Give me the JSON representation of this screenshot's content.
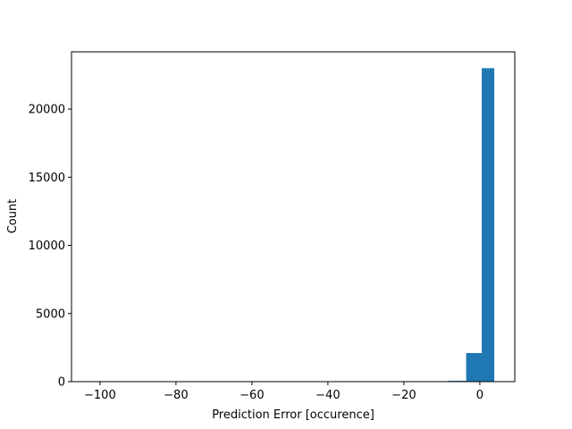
{
  "chart_data": {
    "type": "bar",
    "title": "",
    "xlabel": "Prediction Error [occurence]",
    "ylabel": "Count",
    "xlim": [
      -107.5,
      9.2
    ],
    "ylim": [
      0,
      24200
    ],
    "grid": false,
    "legend": "none",
    "bar_color": "#1f77b4",
    "xticks": [
      -100,
      -80,
      -60,
      -40,
      -20,
      0
    ],
    "xtick_labels": [
      "−100",
      "−80",
      "−60",
      "−40",
      "−20",
      "0"
    ],
    "yticks": [
      0,
      5000,
      10000,
      15000,
      20000
    ],
    "ytick_labels": [
      "0",
      "5000",
      "10000",
      "15000",
      "20000"
    ],
    "bins": [
      {
        "x0": -102.3,
        "x1": -97.6,
        "value": 0
      },
      {
        "x0": -97.6,
        "x1": -92.9,
        "value": 0
      },
      {
        "x0": -92.9,
        "x1": -88.2,
        "value": 0
      },
      {
        "x0": -88.2,
        "x1": -83.5,
        "value": 0
      },
      {
        "x0": -83.5,
        "x1": -78.8,
        "value": 0
      },
      {
        "x0": -78.8,
        "x1": -74.1,
        "value": 0
      },
      {
        "x0": -74.1,
        "x1": -69.4,
        "value": 0
      },
      {
        "x0": -69.4,
        "x1": -64.7,
        "value": 0
      },
      {
        "x0": -64.7,
        "x1": -60.0,
        "value": 0
      },
      {
        "x0": -60.0,
        "x1": -55.3,
        "value": 0
      },
      {
        "x0": -55.3,
        "x1": -50.6,
        "value": 0
      },
      {
        "x0": -50.6,
        "x1": -45.9,
        "value": 0
      },
      {
        "x0": -45.9,
        "x1": -41.2,
        "value": 0
      },
      {
        "x0": -41.2,
        "x1": -36.5,
        "value": 0
      },
      {
        "x0": -36.5,
        "x1": -31.8,
        "value": 0
      },
      {
        "x0": -31.8,
        "x1": -27.1,
        "value": 0
      },
      {
        "x0": -27.1,
        "x1": -22.4,
        "value": 0
      },
      {
        "x0": -22.4,
        "x1": -17.7,
        "value": 0
      },
      {
        "x0": -17.7,
        "x1": -13.0,
        "value": 5
      },
      {
        "x0": -13.0,
        "x1": -8.3,
        "value": 15
      },
      {
        "x0": -8.3,
        "x1": -3.6,
        "value": 60
      },
      {
        "x0": -3.6,
        "x1": 0.5,
        "value": 2100
      },
      {
        "x0": 0.5,
        "x1": 3.8,
        "value": 23000
      }
    ]
  }
}
